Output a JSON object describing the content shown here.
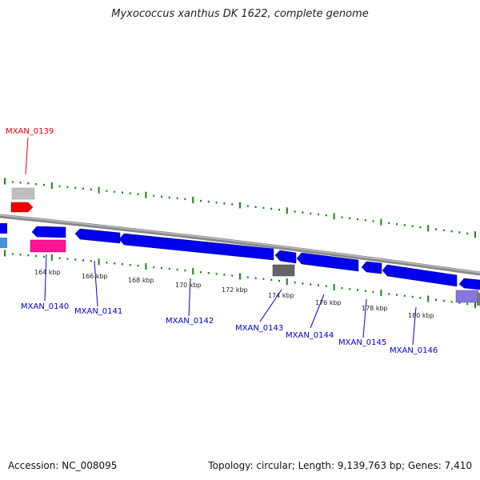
{
  "title": "Myxococcus xanthus DK 1622, complete genome",
  "footer": {
    "accession": "Accession: NC_008095",
    "summary": "Topology: circular; Length: 9,139,763 bp; Genes: 7,410"
  },
  "colors": {
    "forward_gene": "#0000ee",
    "highlight_gene": "#ee0000",
    "backbone": "#888888",
    "tick_dots": "#118811",
    "label_blue": "#0000cc",
    "label_red": "#ee0000",
    "pink_gene": "#ff1493",
    "grey_gene": "#666666",
    "light_blue_gene": "#4a90d9",
    "lavender_gene": "#8877dd"
  },
  "scale_labels": [
    "164 kbp",
    "166 kbp",
    "168 kbp",
    "170 kbp",
    "172 kbp",
    "174 kbp",
    "176 kbp",
    "178 kbp",
    "180 kbp"
  ],
  "gene_labels": [
    {
      "name": "MXAN_0139",
      "highlighted": true
    },
    {
      "name": "MXAN_0140",
      "highlighted": false
    },
    {
      "name": "MXAN_0141",
      "highlighted": false
    },
    {
      "name": "MXAN_0142",
      "highlighted": false
    },
    {
      "name": "MXAN_0143",
      "highlighted": false
    },
    {
      "name": "MXAN_0144",
      "highlighted": false
    },
    {
      "name": "MXAN_0145",
      "highlighted": false
    },
    {
      "name": "MXAN_0146",
      "highlighted": false
    }
  ]
}
